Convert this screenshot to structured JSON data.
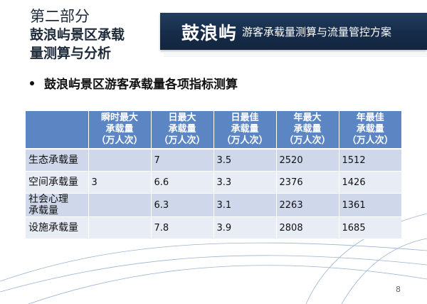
{
  "section": {
    "line1": "第二部分",
    "line2": "鼓浪屿景区承载",
    "line3": "量测算与分析"
  },
  "banner": {
    "brand": "鼓浪屿",
    "subtitle": "游客承载量测算与流量管控方案"
  },
  "bullet": "鼓浪屿景区游客承载量各项指标测算",
  "table": {
    "headers": [
      "",
      "瞬时最大\n承载量\n（万人次）",
      "日最大\n承载量\n（万人次）",
      "日最佳\n承载量\n（万人次）",
      "年最大\n承载量\n（万人次）",
      "年最佳\n承载量\n（万人次）"
    ],
    "rows": [
      {
        "label": "生态承载量",
        "values": [
          "",
          "7",
          "3.5",
          "2520",
          "1512"
        ]
      },
      {
        "label": "空间承载量",
        "values": [
          "3",
          "6.6",
          "3.3",
          "2376",
          "1426"
        ]
      },
      {
        "label": "社会心理\n承载量",
        "values": [
          "",
          "6.3",
          "3.1",
          "2263",
          "1361"
        ]
      },
      {
        "label": "设施承载量",
        "values": [
          "",
          "7.8",
          "3.9",
          "2808",
          "1685"
        ]
      }
    ]
  },
  "page_number": "8",
  "colors": {
    "banner": "#1a3150",
    "table_header": "#5b86c3",
    "row_dark": "#cfd8ea",
    "row_light": "#e8ecf5"
  }
}
